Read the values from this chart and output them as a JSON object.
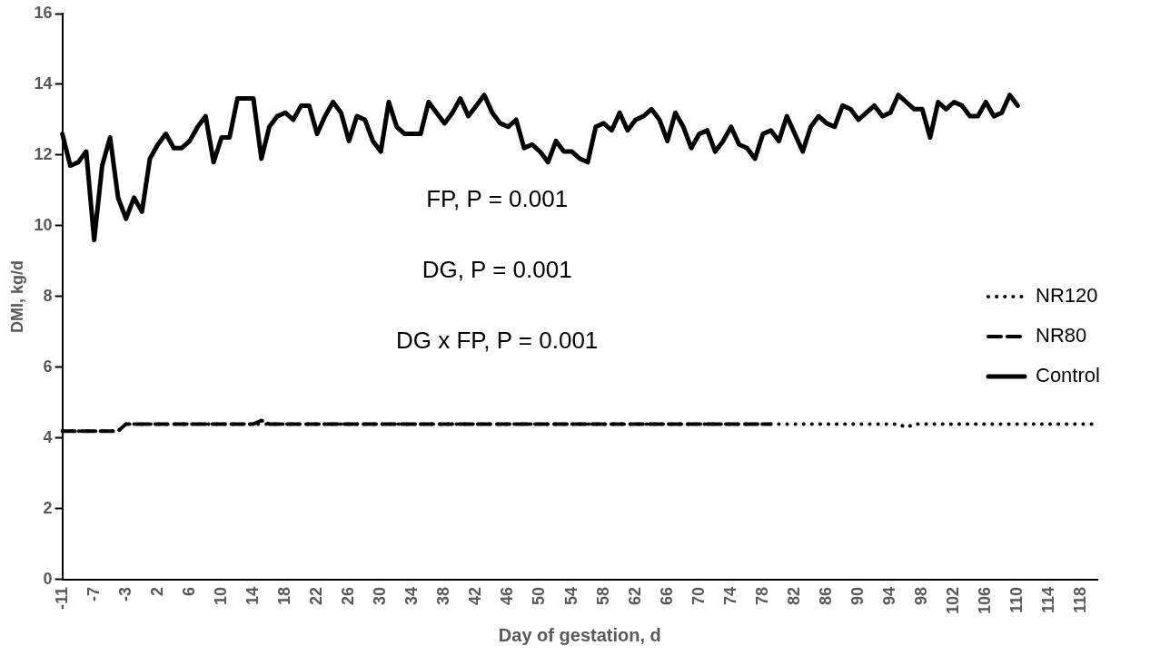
{
  "chart_data": {
    "type": "line",
    "xlabel": "Day of gestation, d",
    "ylabel": "DMI, kg/d",
    "categories": [
      "-11",
      null,
      null,
      null,
      "-7",
      null,
      null,
      null,
      "-3",
      null,
      null,
      null,
      "2",
      null,
      null,
      null,
      "6",
      null,
      null,
      null,
      "10",
      null,
      null,
      null,
      "14",
      null,
      null,
      null,
      "18",
      null,
      null,
      null,
      "22",
      null,
      null,
      null,
      "26",
      null,
      null,
      null,
      "30",
      null,
      null,
      null,
      "34",
      null,
      null,
      null,
      "38",
      null,
      null,
      null,
      "42",
      null,
      null,
      null,
      "46",
      null,
      null,
      null,
      "50",
      null,
      null,
      null,
      "54",
      null,
      null,
      null,
      "58",
      null,
      null,
      null,
      "62",
      null,
      null,
      null,
      "66",
      null,
      null,
      null,
      "70",
      null,
      null,
      null,
      "74",
      null,
      null,
      null,
      "78",
      null,
      null,
      null,
      "82",
      null,
      null,
      null,
      "86",
      null,
      null,
      null,
      "90",
      null,
      null,
      null,
      "94",
      null,
      null,
      null,
      "98",
      null,
      null,
      null,
      "102",
      null,
      null,
      null,
      "106",
      null,
      null,
      null,
      "110",
      null,
      null,
      null,
      "114",
      null,
      null,
      null,
      "118",
      null,
      null
    ],
    "series": [
      {
        "name": "NR120",
        "color": "#000000",
        "line_style": "dotted",
        "values": [
          4.2,
          4.2,
          4.2,
          4.2,
          4.2,
          4.2,
          4.2,
          4.2,
          4.4,
          4.4,
          4.4,
          4.4,
          4.4,
          4.4,
          4.4,
          4.4,
          4.4,
          4.4,
          4.4,
          4.4,
          4.4,
          4.4,
          4.4,
          4.4,
          4.4,
          4.4,
          4.4,
          4.4,
          4.4,
          4.4,
          4.4,
          4.4,
          4.4,
          4.4,
          4.4,
          4.4,
          4.4,
          4.4,
          4.4,
          4.4,
          4.4,
          4.4,
          4.4,
          4.4,
          4.4,
          4.4,
          4.4,
          4.4,
          4.4,
          4.4,
          4.4,
          4.4,
          4.4,
          4.4,
          4.4,
          4.4,
          4.4,
          4.4,
          4.4,
          4.4,
          4.4,
          4.4,
          4.4,
          4.4,
          4.4,
          4.4,
          4.4,
          4.4,
          4.4,
          4.4,
          4.4,
          4.4,
          4.4,
          4.4,
          4.4,
          4.4,
          4.4,
          4.4,
          4.4,
          4.4,
          4.4,
          4.4,
          4.4,
          4.4,
          4.4,
          4.4,
          4.4,
          4.4,
          4.4,
          4.4,
          4.4,
          4.4,
          4.4,
          4.4,
          4.4,
          4.4,
          4.4,
          4.4,
          4.4,
          4.4,
          4.4,
          4.4,
          4.4,
          4.4,
          4.4,
          4.4,
          4.3,
          4.4,
          4.4,
          4.4,
          4.4,
          4.4,
          4.4,
          4.4,
          4.4,
          4.4,
          4.4,
          4.4,
          4.4,
          4.4,
          4.4,
          4.4,
          4.4,
          4.4,
          4.4,
          4.4,
          4.4,
          4.4,
          4.4,
          4.4,
          4.4
        ]
      },
      {
        "name": "NR80",
        "color": "#000000",
        "line_style": "dashed",
        "values": [
          4.2,
          4.2,
          4.2,
          4.2,
          4.2,
          4.2,
          4.2,
          4.2,
          4.4,
          4.4,
          4.4,
          4.4,
          4.4,
          4.4,
          4.4,
          4.4,
          4.4,
          4.4,
          4.4,
          4.4,
          4.4,
          4.4,
          4.4,
          4.4,
          4.4,
          4.5,
          4.4,
          4.4,
          4.4,
          4.4,
          4.4,
          4.4,
          4.4,
          4.4,
          4.4,
          4.4,
          4.4,
          4.4,
          4.4,
          4.4,
          4.4,
          4.4,
          4.4,
          4.4,
          4.4,
          4.4,
          4.4,
          4.4,
          4.4,
          4.4,
          4.4,
          4.4,
          4.4,
          4.4,
          4.4,
          4.4,
          4.4,
          4.4,
          4.4,
          4.4,
          4.4,
          4.4,
          4.4,
          4.4,
          4.4,
          4.4,
          4.4,
          4.4,
          4.4,
          4.4,
          4.4,
          4.4,
          4.4,
          4.4,
          4.4,
          4.4,
          4.4,
          4.4,
          4.4,
          4.4,
          4.4,
          4.4,
          4.4,
          4.4,
          4.4,
          4.4,
          4.4,
          4.4,
          4.4,
          4.4,
          null,
          null,
          null,
          null,
          null,
          null,
          null,
          null,
          null,
          null,
          null,
          null,
          null,
          null,
          null,
          null,
          null,
          null,
          null,
          null,
          null,
          null,
          null,
          null,
          null,
          null,
          null,
          null,
          null,
          null,
          null,
          null,
          null,
          null,
          null,
          null,
          null,
          null,
          null,
          null,
          null
        ]
      },
      {
        "name": "Control",
        "color": "#000000",
        "line_style": "solid",
        "values": [
          12.6,
          11.7,
          11.8,
          12.1,
          9.6,
          11.7,
          12.5,
          10.8,
          10.2,
          10.8,
          10.4,
          11.9,
          12.3,
          12.6,
          12.2,
          12.2,
          12.4,
          12.8,
          13.1,
          11.8,
          12.5,
          12.5,
          13.6,
          13.6,
          13.6,
          11.9,
          12.8,
          13.1,
          13.2,
          13.0,
          13.4,
          13.4,
          12.6,
          13.1,
          13.5,
          13.2,
          12.4,
          13.1,
          13.0,
          12.4,
          12.1,
          13.5,
          12.8,
          12.6,
          12.6,
          12.6,
          13.5,
          13.2,
          12.9,
          13.2,
          13.6,
          13.1,
          13.4,
          13.7,
          13.2,
          12.9,
          12.8,
          13.0,
          12.2,
          12.3,
          12.1,
          11.8,
          12.4,
          12.1,
          12.1,
          11.9,
          11.8,
          12.8,
          12.9,
          12.7,
          13.2,
          12.7,
          13.0,
          13.1,
          13.3,
          13.0,
          12.4,
          13.2,
          12.8,
          12.2,
          12.6,
          12.7,
          12.1,
          12.4,
          12.8,
          12.3,
          12.2,
          11.9,
          12.6,
          12.7,
          12.4,
          13.1,
          12.6,
          12.1,
          12.8,
          13.1,
          12.9,
          12.8,
          13.4,
          13.3,
          13.0,
          13.2,
          13.4,
          13.1,
          13.2,
          13.7,
          13.5,
          13.3,
          13.3,
          12.5,
          13.5,
          13.3,
          13.5,
          13.4,
          13.1,
          13.1,
          13.5,
          13.1,
          13.2,
          13.7,
          13.4,
          null,
          null,
          null,
          null,
          null,
          null,
          null,
          null,
          null,
          null
        ]
      }
    ],
    "ylim": [
      0,
      16
    ],
    "yticks": [
      0,
      2,
      4,
      6,
      8,
      10,
      12,
      14,
      16
    ],
    "grid": false,
    "legend": "right",
    "marker": "none",
    "annotations": [
      "FP, P = 0.001",
      "DG, P = 0.001",
      "DG x FP, P = 0.001"
    ]
  }
}
